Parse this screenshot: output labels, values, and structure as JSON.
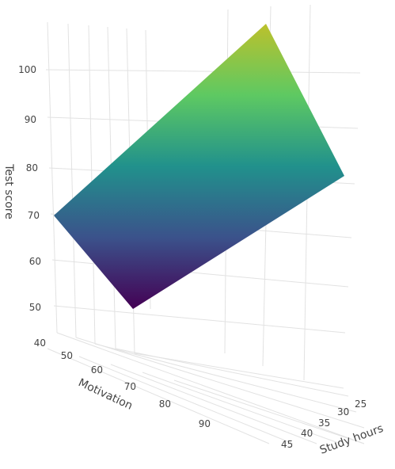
{
  "chart_data": {
    "type": "surface",
    "title": "",
    "colorscale": [
      "#440154",
      "#3b528b",
      "#21918c",
      "#5ec962",
      "#bcc12c"
    ],
    "surface": {
      "x_axis": "Motivation",
      "y_axis": "Study hours",
      "z_axis": "Test score",
      "corners": [
        {
          "motivation": 40,
          "study_hours": 25,
          "test_score": 70
        },
        {
          "motivation": 40,
          "study_hours": 45,
          "test_score": 50
        },
        {
          "motivation": 100,
          "study_hours": 25,
          "test_score": 80
        },
        {
          "motivation": 100,
          "study_hours": 45,
          "test_score": 110
        }
      ]
    },
    "axes": {
      "x": {
        "label": "Motivation",
        "ticks": [
          "40",
          "50",
          "60",
          "70",
          "80",
          "90"
        ]
      },
      "y": {
        "label": "Study hours",
        "ticks": [
          "25",
          "30",
          "35",
          "40",
          "45"
        ]
      },
      "z": {
        "label": "Test score",
        "ticks": [
          "50",
          "60",
          "70",
          "80",
          "90",
          "100"
        ]
      }
    }
  }
}
